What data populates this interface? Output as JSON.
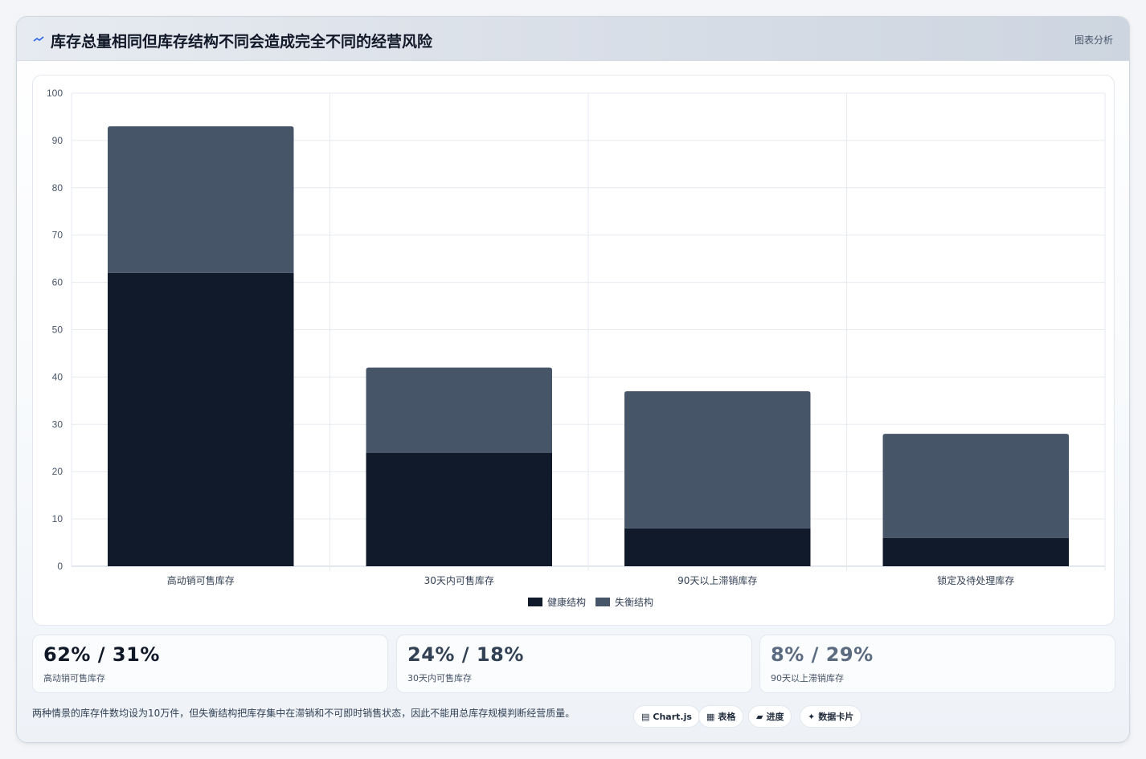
{
  "header": {
    "title": "库存总量相同但库存结构不同会造成完全不同的经营风险",
    "action_label": "图表分析"
  },
  "chart_data": {
    "type": "bar",
    "stacked": true,
    "categories": [
      "高动销可售库存",
      "30天内可售库存",
      "90天以上滞销库存",
      "锁定及待处理库存"
    ],
    "series": [
      {
        "name": "健康结构",
        "values": [
          62,
          24,
          8,
          6
        ],
        "color": "#111a2b"
      },
      {
        "name": "失衡结构",
        "values": [
          31,
          18,
          29,
          22
        ],
        "color": "#475569"
      }
    ],
    "ylim": [
      0,
      100
    ],
    "yticks": [
      0,
      10,
      20,
      30,
      40,
      50,
      60,
      70,
      80,
      90,
      100
    ],
    "grid": true,
    "legend_position": "bottom"
  },
  "stats": [
    {
      "value": "62% / 31%",
      "label": "高动销可售库存",
      "color": "#111827"
    },
    {
      "value": "24% / 18%",
      "label": "30天内可售库存",
      "color": "#334155"
    },
    {
      "value": "8% / 29%",
      "label": "90天以上滞销库存",
      "color": "#5b6b80"
    }
  ],
  "footer": {
    "note": "两种情景的库存件数均设为10万件，但失衡结构把库存集中在滞销和不可即时销售状态，因此不能用总库存规模判断经营质量。",
    "tags": [
      {
        "icon": "▤",
        "label": "Chart.js"
      },
      {
        "icon": "▦",
        "label": "表格"
      },
      {
        "icon": "▰",
        "label": "进度"
      },
      {
        "icon": "✦",
        "label": "数据卡片"
      }
    ]
  }
}
